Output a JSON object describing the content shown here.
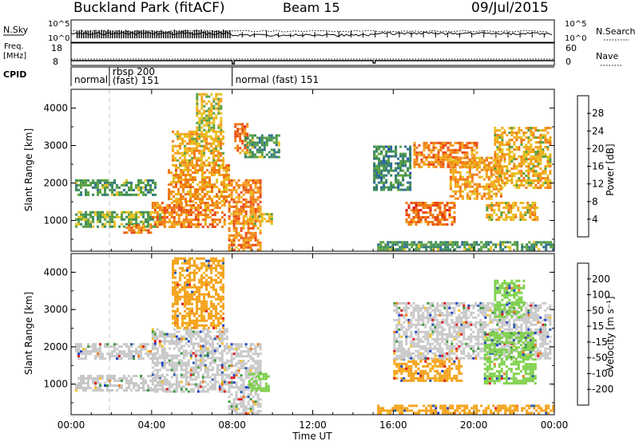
{
  "header": {
    "site": "Buckland Park (fitACF)",
    "beam": "Beam 15",
    "date": "09/Jul/2015"
  },
  "strip": {
    "nsky_label": "N.Sky",
    "nsky_ticks": [
      "10^5",
      "10^0"
    ],
    "nsearch_label": "N.Search",
    "nsearch_ticks": [
      "10^5",
      "10^0"
    ],
    "freq_label": "Freq.",
    "freq_unit": "[MHz]",
    "freq_ticks": [
      "18",
      "8"
    ],
    "nave_label": "Nave",
    "nave_ticks": [
      "60",
      "0"
    ],
    "cpid_label": "CPID",
    "cpid_segments": [
      {
        "label": "normal",
        "label2": "",
        "start_h": 0.0,
        "end_h": 1.9
      },
      {
        "label": "rbsp 200",
        "label2": "(fast) 151",
        "start_h": 1.9,
        "end_h": 8.0
      },
      {
        "label": "normal (fast)  151",
        "label2": "",
        "start_h": 8.0,
        "end_h": 24.0
      }
    ]
  },
  "axes": {
    "ylabel": "Slant Range [km]",
    "xlabel": "Time UT",
    "x_ticks": [
      "00:00",
      "04:00",
      "08:00",
      "12:00",
      "16:00",
      "20:00",
      "00:00"
    ],
    "y_ticks": [
      "1000",
      "2000",
      "3000",
      "4000"
    ]
  },
  "colorbars": {
    "power": {
      "label": "Power [dB]",
      "ticks": [
        "4",
        "8",
        "12",
        "16",
        "20",
        "24",
        "28"
      ],
      "colors": [
        "#2a36e6",
        "#2250b8",
        "#2f6e8c",
        "#3a8a5a",
        "#58a040",
        "#e6c020",
        "#f4a21a",
        "#ef7a16",
        "#e84a12",
        "#e01818"
      ]
    },
    "velocity": {
      "label": "Velocity [m s⁻¹]",
      "ticks": [
        "200",
        "100",
        "50",
        "15",
        "-15",
        "-50",
        "-100",
        "-200"
      ],
      "colors": [
        "#2040c8",
        "#2a5aa8",
        "#2f7a70",
        "#3c9a3c",
        "#7ed04a",
        "#c8c8c8",
        "#c8c8c8",
        "#f0c020",
        "#f4a21a",
        "#ef7a16",
        "#e84a12",
        "#e01818"
      ]
    }
  },
  "chart_data": {
    "type": "heatmap",
    "title": "Buckland Park (fitACF)",
    "xlabel": "Time UT",
    "ylabel": "Slant Range [km]",
    "xlim_hours": [
      0,
      24
    ],
    "ylim_km": [
      180,
      4500
    ],
    "grid": false,
    "power_regions": [
      {
        "t0": 0.2,
        "t1": 4.6,
        "r0": 820,
        "r1": 1250,
        "dB": 14
      },
      {
        "t0": 0.2,
        "t1": 4.2,
        "r0": 1700,
        "r1": 2100,
        "dB": 12
      },
      {
        "t0": 2.6,
        "t1": 4.0,
        "r0": 650,
        "r1": 900,
        "dB": 24
      },
      {
        "t0": 4.0,
        "t1": 7.6,
        "r0": 800,
        "r1": 1500,
        "dB": 24
      },
      {
        "t0": 4.8,
        "t1": 7.8,
        "r0": 1500,
        "r1": 2500,
        "dB": 22
      },
      {
        "t0": 5.0,
        "t1": 7.6,
        "r0": 2500,
        "r1": 3400,
        "dB": 20
      },
      {
        "t0": 6.2,
        "t1": 7.4,
        "r0": 3400,
        "r1": 4400,
        "dB": 18
      },
      {
        "t0": 7.8,
        "t1": 9.4,
        "r0": 200,
        "r1": 2100,
        "dB": 24
      },
      {
        "t0": 8.1,
        "t1": 8.8,
        "r0": 2800,
        "r1": 3600,
        "dB": 26
      },
      {
        "t0": 8.6,
        "t1": 10.0,
        "r0": 900,
        "r1": 1200,
        "dB": 18
      },
      {
        "t0": 8.6,
        "t1": 10.3,
        "r0": 2700,
        "r1": 3300,
        "dB": 12
      },
      {
        "t0": 15.2,
        "t1": 24.0,
        "r0": 200,
        "r1": 450,
        "dB": 12
      },
      {
        "t0": 16.6,
        "t1": 19.0,
        "r0": 900,
        "r1": 1500,
        "dB": 26
      },
      {
        "t0": 17.0,
        "t1": 20.2,
        "r0": 2400,
        "r1": 3100,
        "dB": 24
      },
      {
        "t0": 18.8,
        "t1": 21.4,
        "r0": 1600,
        "r1": 2700,
        "dB": 22
      },
      {
        "t0": 20.6,
        "t1": 23.2,
        "r0": 1000,
        "r1": 1500,
        "dB": 20
      },
      {
        "t0": 21.0,
        "t1": 23.8,
        "r0": 1900,
        "r1": 3500,
        "dB": 20
      },
      {
        "t0": 15.0,
        "t1": 16.8,
        "r0": 1800,
        "r1": 3000,
        "dB": 10
      }
    ],
    "velocity_regions": [
      {
        "t0": 0.2,
        "t1": 4.6,
        "r0": 820,
        "r1": 1250,
        "v": 0
      },
      {
        "t0": 0.2,
        "t1": 4.2,
        "r0": 1700,
        "r1": 2100,
        "v": 0
      },
      {
        "t0": 4.0,
        "t1": 7.8,
        "r0": 800,
        "r1": 2500,
        "v": 0
      },
      {
        "t0": 5.0,
        "t1": 7.6,
        "r0": 2500,
        "r1": 4400,
        "v": -50
      },
      {
        "t0": 7.8,
        "t1": 9.4,
        "r0": 200,
        "r1": 2100,
        "v": 0
      },
      {
        "t0": 8.8,
        "t1": 9.8,
        "r0": 850,
        "r1": 1300,
        "v": 50
      },
      {
        "t0": 15.2,
        "t1": 24.0,
        "r0": 200,
        "r1": 450,
        "v": -50
      },
      {
        "t0": 16.0,
        "t1": 19.4,
        "r0": 1100,
        "r1": 1700,
        "v": -50
      },
      {
        "t0": 16.0,
        "t1": 23.8,
        "r0": 1700,
        "r1": 3200,
        "v": 0
      },
      {
        "t0": 20.5,
        "t1": 23.0,
        "r0": 1000,
        "r1": 2400,
        "v": 50
      },
      {
        "t0": 21.0,
        "t1": 22.5,
        "r0": 2800,
        "r1": 3800,
        "v": 50
      }
    ]
  }
}
